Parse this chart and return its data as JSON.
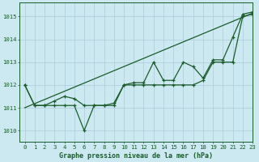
{
  "title": "Graphe pression niveau de la mer (hPa)",
  "bg_color": "#cce8f0",
  "grid_color": "#aaccdd",
  "line_color": "#1a5c2a",
  "xlim": [
    -0.5,
    23
  ],
  "ylim": [
    1009.5,
    1015.6
  ],
  "yticks": [
    1010,
    1011,
    1012,
    1013,
    1014,
    1015
  ],
  "xticks": [
    0,
    1,
    2,
    3,
    4,
    5,
    6,
    7,
    8,
    9,
    10,
    11,
    12,
    13,
    14,
    15,
    16,
    17,
    18,
    19,
    20,
    21,
    22,
    23
  ],
  "series_wavy": [
    1012.0,
    1011.1,
    1011.1,
    1011.3,
    1011.5,
    1011.4,
    1011.1,
    1011.1,
    1011.1,
    1011.2,
    1012.0,
    1012.1,
    1012.1,
    1013.0,
    1012.2,
    1012.2,
    1013.0,
    1012.8,
    1012.3,
    1013.1,
    1013.1,
    1014.1,
    1015.1,
    1015.2
  ],
  "series_dip": [
    1012.0,
    1011.1,
    1011.1,
    1011.1,
    1011.1,
    1011.1,
    1010.0,
    1011.1,
    1011.1,
    1011.1,
    1012.0,
    1012.0,
    1012.0,
    1012.0,
    1012.0,
    1012.0,
    1012.0,
    1012.0,
    1012.2,
    1013.0,
    1013.0,
    1013.0,
    1015.0,
    1015.1
  ],
  "trend_line": [
    1011.0,
    1015.15
  ]
}
